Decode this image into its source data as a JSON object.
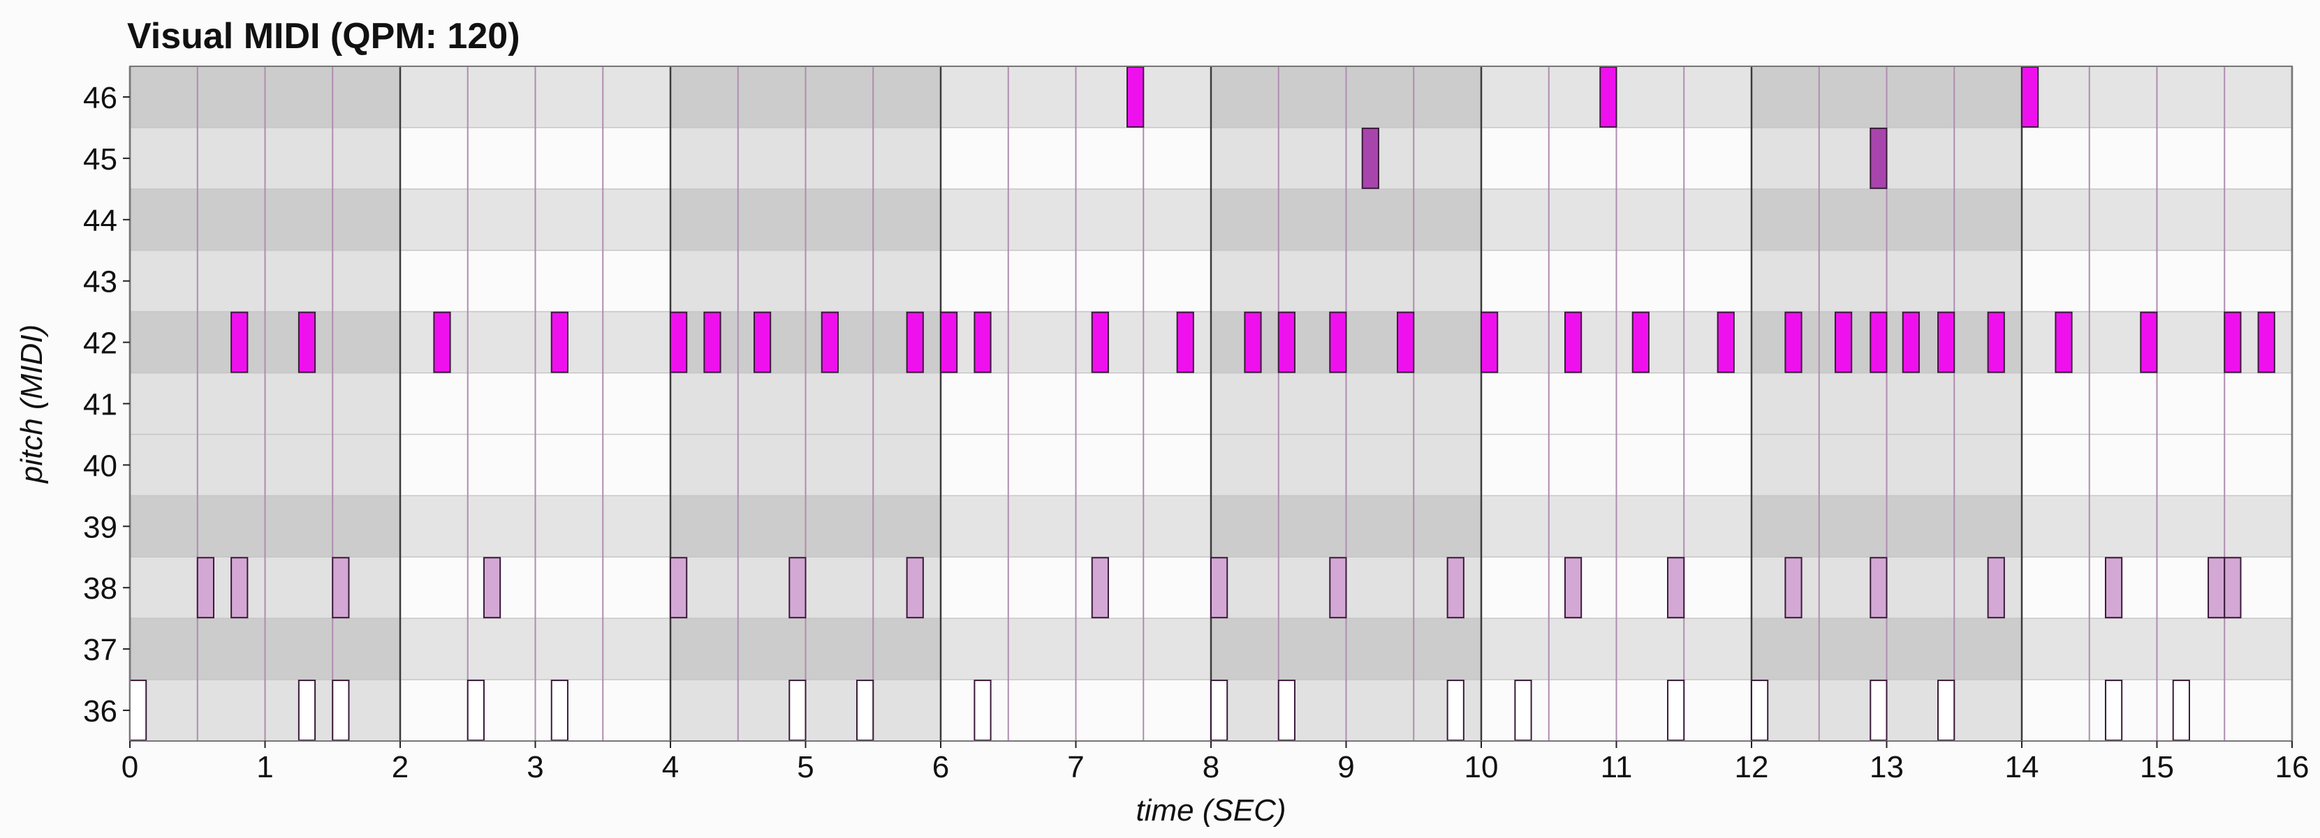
{
  "chart_data": {
    "type": "piano-roll",
    "title": "Visual MIDI (QPM: 120)",
    "xlabel": "time (SEC)",
    "ylabel": "pitch (MIDI)",
    "xlim": [
      0,
      16
    ],
    "ylim": [
      35.5,
      46.5
    ],
    "xticks": [
      "0",
      "1",
      "2",
      "3",
      "4",
      "5",
      "6",
      "7",
      "8",
      "9",
      "10",
      "11",
      "12",
      "13",
      "14",
      "15",
      "16"
    ],
    "yticks": [
      "36",
      "37",
      "38",
      "39",
      "40",
      "41",
      "42",
      "43",
      "44",
      "45",
      "46"
    ],
    "grid": true,
    "beat_seconds": 0.5,
    "bar_seconds": 2,
    "notes": [
      {
        "pitch": 36,
        "start": 0.0,
        "end": 0.12,
        "color": "#ffffff"
      },
      {
        "pitch": 36,
        "start": 1.25,
        "end": 1.37,
        "color": "#ffffff"
      },
      {
        "pitch": 36,
        "start": 1.5,
        "end": 1.62,
        "color": "#ffffff"
      },
      {
        "pitch": 36,
        "start": 2.5,
        "end": 2.62,
        "color": "#ffffff"
      },
      {
        "pitch": 36,
        "start": 3.12,
        "end": 3.24,
        "color": "#ffffff"
      },
      {
        "pitch": 36,
        "start": 4.88,
        "end": 5.0,
        "color": "#ffffff"
      },
      {
        "pitch": 36,
        "start": 5.38,
        "end": 5.5,
        "color": "#ffffff"
      },
      {
        "pitch": 36,
        "start": 6.25,
        "end": 6.37,
        "color": "#ffffff"
      },
      {
        "pitch": 36,
        "start": 8.0,
        "end": 8.12,
        "color": "#ffffff"
      },
      {
        "pitch": 36,
        "start": 8.5,
        "end": 8.62,
        "color": "#ffffff"
      },
      {
        "pitch": 36,
        "start": 9.75,
        "end": 9.87,
        "color": "#ffffff"
      },
      {
        "pitch": 36,
        "start": 10.25,
        "end": 10.37,
        "color": "#ffffff"
      },
      {
        "pitch": 36,
        "start": 11.38,
        "end": 11.5,
        "color": "#ffffff"
      },
      {
        "pitch": 36,
        "start": 12.0,
        "end": 12.12,
        "color": "#ffffff"
      },
      {
        "pitch": 36,
        "start": 12.88,
        "end": 13.0,
        "color": "#ffffff"
      },
      {
        "pitch": 36,
        "start": 13.38,
        "end": 13.5,
        "color": "#ffffff"
      },
      {
        "pitch": 36,
        "start": 14.62,
        "end": 14.74,
        "color": "#ffffff"
      },
      {
        "pitch": 36,
        "start": 15.12,
        "end": 15.24,
        "color": "#ffffff"
      },
      {
        "pitch": 38,
        "start": 0.5,
        "end": 0.62,
        "color": "#d4a8d4"
      },
      {
        "pitch": 38,
        "start": 0.75,
        "end": 0.87,
        "color": "#d4a8d4"
      },
      {
        "pitch": 38,
        "start": 1.5,
        "end": 1.62,
        "color": "#d4a8d4"
      },
      {
        "pitch": 38,
        "start": 2.62,
        "end": 2.74,
        "color": "#d4a8d4"
      },
      {
        "pitch": 38,
        "start": 4.0,
        "end": 4.12,
        "color": "#d4a8d4"
      },
      {
        "pitch": 38,
        "start": 4.88,
        "end": 5.0,
        "color": "#d4a8d4"
      },
      {
        "pitch": 38,
        "start": 5.75,
        "end": 5.87,
        "color": "#d4a8d4"
      },
      {
        "pitch": 38,
        "start": 7.12,
        "end": 7.24,
        "color": "#d4a8d4"
      },
      {
        "pitch": 38,
        "start": 8.0,
        "end": 8.12,
        "color": "#d4a8d4"
      },
      {
        "pitch": 38,
        "start": 8.88,
        "end": 9.0,
        "color": "#d4a8d4"
      },
      {
        "pitch": 38,
        "start": 9.75,
        "end": 9.87,
        "color": "#d4a8d4"
      },
      {
        "pitch": 38,
        "start": 10.62,
        "end": 10.74,
        "color": "#d4a8d4"
      },
      {
        "pitch": 38,
        "start": 11.38,
        "end": 11.5,
        "color": "#d4a8d4"
      },
      {
        "pitch": 38,
        "start": 12.25,
        "end": 12.37,
        "color": "#d4a8d4"
      },
      {
        "pitch": 38,
        "start": 12.88,
        "end": 13.0,
        "color": "#d4a8d4"
      },
      {
        "pitch": 38,
        "start": 13.75,
        "end": 13.87,
        "color": "#d4a8d4"
      },
      {
        "pitch": 38,
        "start": 14.62,
        "end": 14.74,
        "color": "#d4a8d4"
      },
      {
        "pitch": 38,
        "start": 15.38,
        "end": 15.5,
        "color": "#d4a8d4"
      },
      {
        "pitch": 38,
        "start": 15.5,
        "end": 15.62,
        "color": "#d4a8d4"
      },
      {
        "pitch": 42,
        "start": 0.75,
        "end": 0.87,
        "color": "#ee11ee"
      },
      {
        "pitch": 42,
        "start": 1.25,
        "end": 1.37,
        "color": "#ee11ee"
      },
      {
        "pitch": 42,
        "start": 2.25,
        "end": 2.37,
        "color": "#ee11ee"
      },
      {
        "pitch": 42,
        "start": 3.12,
        "end": 3.24,
        "color": "#ee11ee"
      },
      {
        "pitch": 42,
        "start": 4.0,
        "end": 4.12,
        "color": "#ee11ee"
      },
      {
        "pitch": 42,
        "start": 4.25,
        "end": 4.37,
        "color": "#ee11ee"
      },
      {
        "pitch": 42,
        "start": 4.62,
        "end": 4.74,
        "color": "#ee11ee"
      },
      {
        "pitch": 42,
        "start": 5.12,
        "end": 5.24,
        "color": "#ee11ee"
      },
      {
        "pitch": 42,
        "start": 5.75,
        "end": 5.87,
        "color": "#ee11ee"
      },
      {
        "pitch": 42,
        "start": 6.0,
        "end": 6.12,
        "color": "#ee11ee"
      },
      {
        "pitch": 42,
        "start": 6.25,
        "end": 6.37,
        "color": "#ee11ee"
      },
      {
        "pitch": 42,
        "start": 7.12,
        "end": 7.24,
        "color": "#ee11ee"
      },
      {
        "pitch": 42,
        "start": 7.75,
        "end": 7.87,
        "color": "#ee11ee"
      },
      {
        "pitch": 42,
        "start": 8.25,
        "end": 8.37,
        "color": "#ee11ee"
      },
      {
        "pitch": 42,
        "start": 8.5,
        "end": 8.62,
        "color": "#ee11ee"
      },
      {
        "pitch": 42,
        "start": 8.88,
        "end": 9.0,
        "color": "#ee11ee"
      },
      {
        "pitch": 42,
        "start": 9.38,
        "end": 9.5,
        "color": "#ee11ee"
      },
      {
        "pitch": 42,
        "start": 10.0,
        "end": 10.12,
        "color": "#ee11ee"
      },
      {
        "pitch": 42,
        "start": 10.62,
        "end": 10.74,
        "color": "#ee11ee"
      },
      {
        "pitch": 42,
        "start": 11.12,
        "end": 11.24,
        "color": "#ee11ee"
      },
      {
        "pitch": 42,
        "start": 11.75,
        "end": 11.87,
        "color": "#ee11ee"
      },
      {
        "pitch": 42,
        "start": 12.25,
        "end": 12.37,
        "color": "#ee11ee"
      },
      {
        "pitch": 42,
        "start": 12.62,
        "end": 12.74,
        "color": "#ee11ee"
      },
      {
        "pitch": 42,
        "start": 12.88,
        "end": 13.0,
        "color": "#ee11ee"
      },
      {
        "pitch": 42,
        "start": 13.12,
        "end": 13.24,
        "color": "#ee11ee"
      },
      {
        "pitch": 42,
        "start": 13.38,
        "end": 13.5,
        "color": "#ee11ee"
      },
      {
        "pitch": 42,
        "start": 13.75,
        "end": 13.87,
        "color": "#ee11ee"
      },
      {
        "pitch": 42,
        "start": 14.25,
        "end": 14.37,
        "color": "#ee11ee"
      },
      {
        "pitch": 42,
        "start": 14.88,
        "end": 15.0,
        "color": "#ee11ee"
      },
      {
        "pitch": 42,
        "start": 15.5,
        "end": 15.62,
        "color": "#ee11ee"
      },
      {
        "pitch": 42,
        "start": 15.75,
        "end": 15.87,
        "color": "#ee11ee"
      },
      {
        "pitch": 45,
        "start": 9.12,
        "end": 9.24,
        "color": "#a845ac"
      },
      {
        "pitch": 45,
        "start": 12.88,
        "end": 13.0,
        "color": "#a845ac"
      },
      {
        "pitch": 46,
        "start": 7.38,
        "end": 7.5,
        "color": "#ee11ee"
      },
      {
        "pitch": 46,
        "start": 10.88,
        "end": 11.0,
        "color": "#ee11ee"
      },
      {
        "pitch": 46,
        "start": 14.0,
        "end": 14.12,
        "color": "#ee11ee"
      }
    ]
  }
}
